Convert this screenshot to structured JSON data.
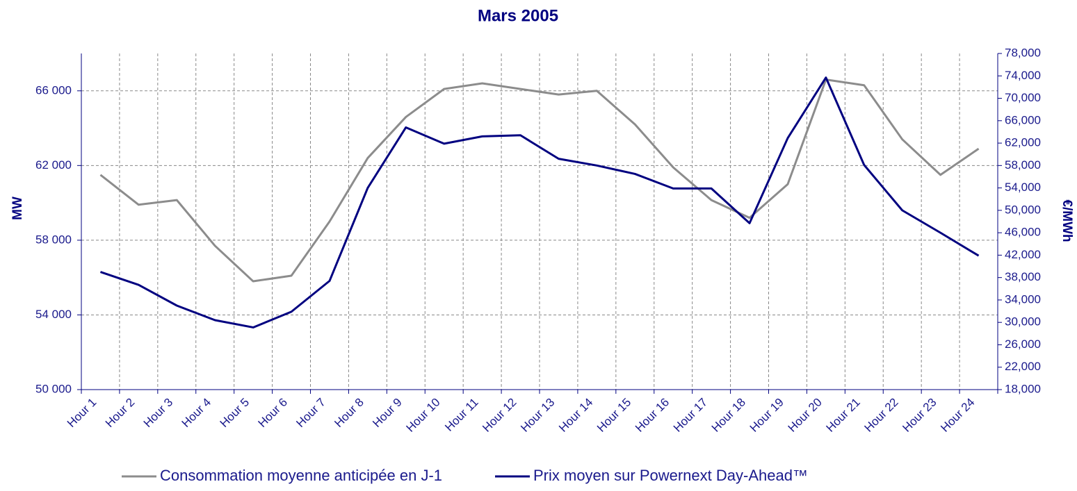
{
  "chart_data": {
    "type": "line",
    "title": "Mars 2005",
    "y_label": "MW",
    "y2_label": "€/MWh",
    "categories": [
      "Hour 1",
      "Hour 2",
      "Hour 3",
      "Hour 4",
      "Hour 5",
      "Hour 6",
      "Hour 7",
      "Hour 8",
      "Hour 9",
      "Hour 10",
      "Hour 11",
      "Hour 12",
      "Hour 13",
      "Hour 14",
      "Hour 15",
      "Hour 16",
      "Hour 17",
      "Hour 18",
      "Hour 19",
      "Hour 20",
      "Hour 21",
      "Hour 22",
      "Hour 23",
      "Hour 24"
    ],
    "series": [
      {
        "name": "Consommation moyenne anticipée en J-1",
        "color": "#8c8c8c",
        "axis": "y",
        "values": [
          61500,
          59900,
          60150,
          57700,
          55800,
          56100,
          59000,
          62400,
          64600,
          66100,
          66400,
          66100,
          65800,
          66000,
          64200,
          61900,
          60150,
          59200,
          61000,
          66600,
          66300,
          63400,
          61500,
          62900
        ]
      },
      {
        "name": "Prix moyen sur Powernext Day-Ahead™",
        "color": "#000080",
        "axis": "y2",
        "values": [
          39000,
          36700,
          33000,
          30400,
          29100,
          31900,
          37400,
          54000,
          64800,
          61900,
          63200,
          63400,
          59200,
          58000,
          56500,
          53900,
          53900,
          47700,
          62900,
          73700,
          58100,
          50000,
          46000,
          41900
        ]
      }
    ],
    "ylim": [
      50000,
      68000
    ],
    "yticks": [
      {
        "value": 50000,
        "label": "50 000"
      },
      {
        "value": 54000,
        "label": "54 000"
      },
      {
        "value": 58000,
        "label": "58 000"
      },
      {
        "value": 62000,
        "label": "62 000"
      },
      {
        "value": 66000,
        "label": "66 000"
      }
    ],
    "y2lim": [
      18000,
      78000
    ],
    "y2ticks": [
      {
        "value": 18000,
        "label": "18,000"
      },
      {
        "value": 22000,
        "label": "22,000"
      },
      {
        "value": 26000,
        "label": "26,000"
      },
      {
        "value": 30000,
        "label": "30,000"
      },
      {
        "value": 34000,
        "label": "34,000"
      },
      {
        "value": 38000,
        "label": "38,000"
      },
      {
        "value": 42000,
        "label": "42,000"
      },
      {
        "value": 46000,
        "label": "46,000"
      },
      {
        "value": 50000,
        "label": "50,000"
      },
      {
        "value": 54000,
        "label": "54,000"
      },
      {
        "value": 58000,
        "label": "58,000"
      },
      {
        "value": 62000,
        "label": "62,000"
      },
      {
        "value": 66000,
        "label": "66,000"
      },
      {
        "value": 70000,
        "label": "70,000"
      },
      {
        "value": 74000,
        "label": "74,000"
      },
      {
        "value": 78000,
        "label": "78,000"
      }
    ],
    "grid": true,
    "legend": "bottom"
  }
}
